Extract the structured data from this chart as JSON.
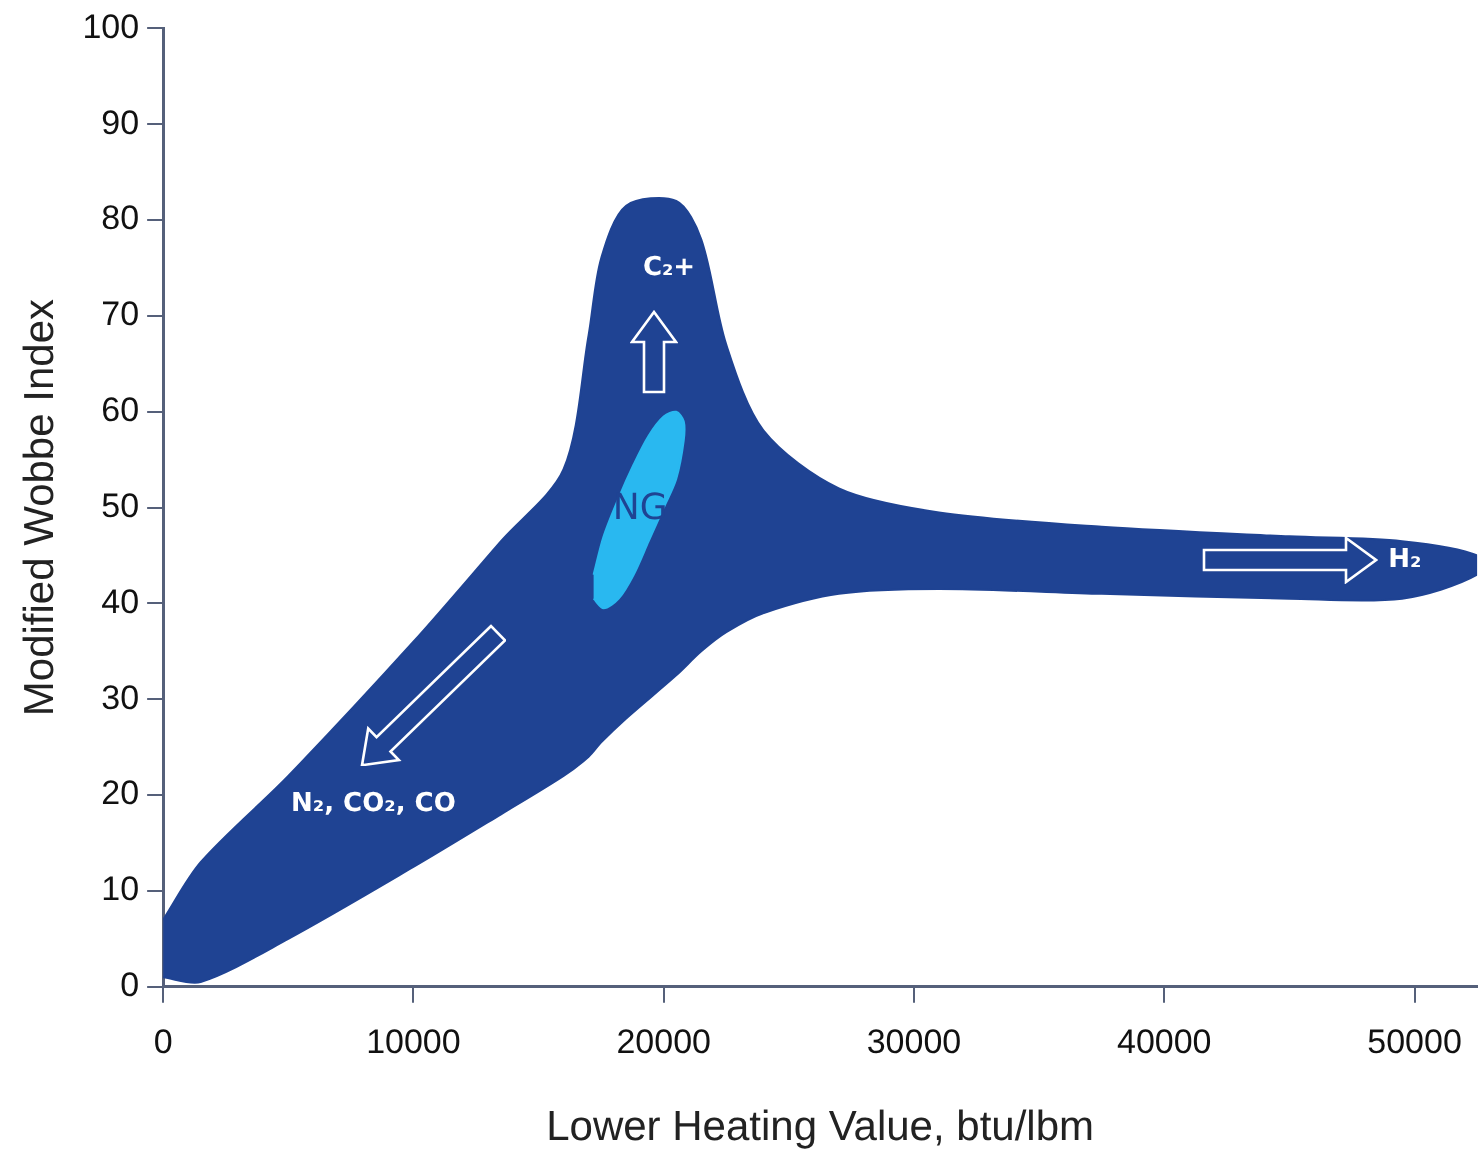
{
  "chart_data": {
    "type": "area",
    "xlabel": "Lower Heating Value, btu/lbm",
    "ylabel": "Modified Wobbe Index",
    "xlim": [
      0,
      52500
    ],
    "xticks": [
      0,
      10000,
      20000,
      30000,
      40000,
      50000
    ],
    "ylim": [
      0,
      100
    ],
    "yticks": [
      0,
      10,
      20,
      30,
      40,
      50,
      60,
      70,
      80,
      90,
      100
    ],
    "grid": false,
    "legend": false,
    "series": [
      {
        "color": "#1f4393",
        "x": [
          0,
          1500,
          5000,
          10000,
          13500,
          16000,
          17000,
          17500,
          18500,
          20500,
          21500,
          22500,
          24000,
          27000,
          31000,
          37500,
          45000,
          49500,
          52500,
          52500,
          49500,
          45000,
          37500,
          31000,
          27000,
          24000,
          22500,
          21500,
          20500,
          18500,
          17500,
          17000,
          16000,
          13500,
          10000,
          5000,
          1500,
          0
        ],
        "values": [
          7,
          13,
          22,
          36,
          46.5,
          54,
          68,
          76,
          81.5,
          82,
          78,
          67,
          58,
          52,
          49.5,
          48,
          47,
          46.5,
          45,
          43,
          40.5,
          40.5,
          41,
          41.5,
          41,
          39,
          37,
          35,
          32.5,
          28,
          25.5,
          24,
          22,
          18,
          12.5,
          5,
          0.5,
          1
        ]
      },
      {
        "name": "NG",
        "color": "#29b8f0",
        "x": [
          17200,
          17600,
          18200,
          18800,
          19400,
          20000,
          20500,
          20800,
          20800,
          20500,
          20000,
          19400,
          18800,
          18200,
          17600,
          17200
        ],
        "values": [
          43,
          47,
          51,
          54.5,
          57.5,
          59.5,
          60,
          59,
          57,
          53,
          50,
          46.5,
          43,
          40.5,
          39.5,
          40.5
        ]
      }
    ],
    "annotations": [
      "C₂+",
      "H₂",
      "N₂, CO₂, CO"
    ]
  }
}
